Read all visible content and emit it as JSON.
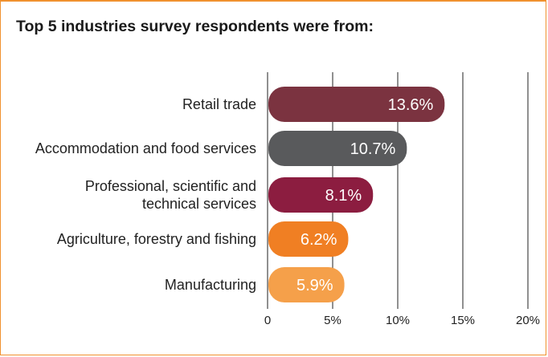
{
  "title": "Top 5 industries survey respondents were from:",
  "colors": {
    "border": "#f0912f",
    "retail": "#7b3340",
    "accommodation": "#595a5c",
    "professional": "#8c1d40",
    "agriculture": "#f07f23",
    "manufacturing": "#f5a04a"
  },
  "chart_data": {
    "type": "bar",
    "orientation": "horizontal",
    "title": "Top 5 industries survey respondents were from:",
    "categories": [
      [
        "Retail trade"
      ],
      [
        "Accommodation and food services"
      ],
      [
        "Professional, scientific and",
        "technical services"
      ],
      [
        "Agriculture, forestry and fishing"
      ],
      [
        "Manufacturing"
      ]
    ],
    "values": [
      13.6,
      10.7,
      8.1,
      6.2,
      5.9
    ],
    "value_labels": [
      "13.6%",
      "10.7%",
      "8.1%",
      "6.2%",
      "5.9%"
    ],
    "bar_colors": [
      "#7b3340",
      "#595a5c",
      "#8c1d40",
      "#f07f23",
      "#f5a04a"
    ],
    "xlim": [
      0,
      20
    ],
    "xticks": [
      0,
      5,
      10,
      15,
      20
    ],
    "xtick_labels": [
      "0",
      "5%",
      "10%",
      "15%",
      "20%"
    ],
    "grid": true
  }
}
